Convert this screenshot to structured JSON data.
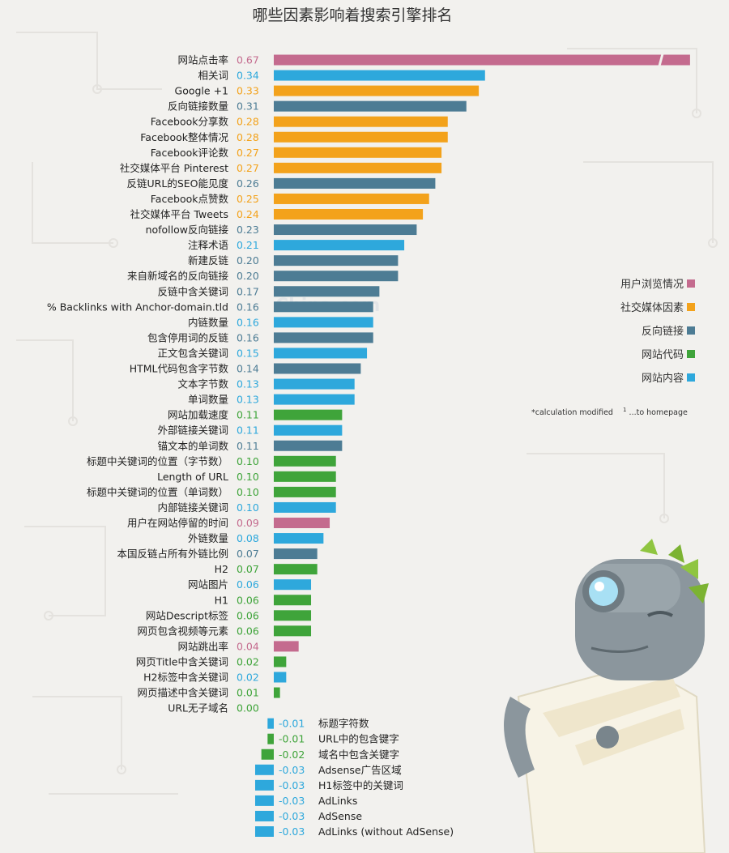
{
  "colors": {
    "user": "#c46b8e",
    "social": "#f3a21b",
    "backlink": "#4d7c94",
    "code": "#3fa43a",
    "content": "#2ea8dc"
  },
  "legend": [
    {
      "label": "用户浏览情况",
      "color": "#c46b8e"
    },
    {
      "label": "社交媒体因素",
      "color": "#f3a21b"
    },
    {
      "label": "反向链接",
      "color": "#4d7c94"
    },
    {
      "label": "网站代码",
      "color": "#3fa43a"
    },
    {
      "label": "网站内容",
      "color": "#2ea8dc"
    }
  ],
  "footnote": {
    "calc": "*calculation modified",
    "sup": "1",
    "home": "...to homepage"
  },
  "watermark": "China.com",
  "mascot_icon": "robot-mascot-icon",
  "chart_data": {
    "type": "bar",
    "title": "哪些因素影响着搜索引擎排名",
    "orientation": "horizontal",
    "legend_position": "right",
    "grid": false,
    "xlim": [
      -0.03,
      0.67
    ],
    "bars": [
      {
        "label": "网站点击率",
        "value": 0.67,
        "value_text": "0.67",
        "cat": "user"
      },
      {
        "label": "相关词",
        "value": 0.34,
        "value_text": "0.34",
        "cat": "content"
      },
      {
        "label": "Google +1",
        "value": 0.33,
        "value_text": "0.33",
        "cat": "social"
      },
      {
        "label": "反向链接数量",
        "value": 0.31,
        "value_text": "0.31",
        "cat": "backlink"
      },
      {
        "label": "Facebook分享数",
        "value": 0.28,
        "value_text": "0.28",
        "cat": "social"
      },
      {
        "label": "Facebook整体情况",
        "value": 0.28,
        "value_text": "0.28",
        "cat": "social"
      },
      {
        "label": "Facebook评论数",
        "value": 0.27,
        "value_text": "0.27",
        "cat": "social"
      },
      {
        "label": "社交媒体平台 Pinterest",
        "value": 0.27,
        "value_text": "0.27",
        "cat": "social"
      },
      {
        "label": "反链URL的SEO能见度",
        "value": 0.26,
        "value_text": "0.26",
        "cat": "backlink"
      },
      {
        "label": "Facebook点赞数",
        "value": 0.25,
        "value_text": "0.25",
        "cat": "social"
      },
      {
        "label": "社交媒体平台 Tweets",
        "value": 0.24,
        "value_text": "0.24",
        "cat": "social"
      },
      {
        "label": "nofollow反向链接",
        "value": 0.23,
        "value_text": "0.23",
        "cat": "backlink"
      },
      {
        "label": "注释术语",
        "value": 0.21,
        "value_text": "0.21",
        "cat": "content"
      },
      {
        "label": "新建反链",
        "value": 0.2,
        "value_text": "0.20",
        "cat": "backlink"
      },
      {
        "label": "来自新域名的反向链接",
        "value": 0.2,
        "value_text": "0.20",
        "cat": "backlink"
      },
      {
        "label": "反链中含关键词",
        "value": 0.17,
        "value_text": "0.17",
        "cat": "backlink"
      },
      {
        "label": "% Backlinks with Anchor-domain.tld",
        "value": 0.16,
        "value_text": "0.16",
        "cat": "backlink"
      },
      {
        "label": "内链数量",
        "value": 0.16,
        "value_text": "0.16",
        "cat": "content"
      },
      {
        "label": "包含停用词的反链",
        "value": 0.16,
        "value_text": "0.16",
        "cat": "backlink"
      },
      {
        "label": "正文包含关键词",
        "value": 0.15,
        "value_text": "0.15",
        "cat": "content"
      },
      {
        "label": "HTML代码包含字节数",
        "value": 0.14,
        "value_text": "0.14",
        "cat": "backlink"
      },
      {
        "label": "文本字节数",
        "value": 0.13,
        "value_text": "0.13",
        "cat": "content"
      },
      {
        "label": "单词数量",
        "value": 0.13,
        "value_text": "0.13",
        "cat": "content"
      },
      {
        "label": "网站加载速度",
        "value": 0.11,
        "value_text": "0.11",
        "cat": "code"
      },
      {
        "label": "外部链接关键词",
        "value": 0.11,
        "value_text": "0.11",
        "cat": "content"
      },
      {
        "label": "锚文本的单词数",
        "value": 0.11,
        "value_text": "0.11",
        "cat": "backlink"
      },
      {
        "label": "标题中关键词的位置（字节数）",
        "value": 0.1,
        "value_text": "0.10",
        "cat": "code"
      },
      {
        "label": "Length of URL",
        "value": 0.1,
        "value_text": "0.10",
        "cat": "code"
      },
      {
        "label": "标题中关键词的位置（单词数）",
        "value": 0.1,
        "value_text": "0.10",
        "cat": "code"
      },
      {
        "label": "内部链接关键词",
        "value": 0.1,
        "value_text": "0.10",
        "cat": "content"
      },
      {
        "label": "用户在网站停留的时间",
        "value": 0.09,
        "value_text": "0.09",
        "cat": "user"
      },
      {
        "label": "外链数量",
        "value": 0.08,
        "value_text": "0.08",
        "cat": "content"
      },
      {
        "label": "本国反链占所有外链比例",
        "value": 0.07,
        "value_text": "0.07",
        "cat": "backlink"
      },
      {
        "label": "H2",
        "value": 0.07,
        "value_text": "0.07",
        "cat": "code"
      },
      {
        "label": "网站图片",
        "value": 0.06,
        "value_text": "0.06",
        "cat": "content"
      },
      {
        "label": "H1",
        "value": 0.06,
        "value_text": "0.06",
        "cat": "code"
      },
      {
        "label": "网站Descript标签",
        "value": 0.06,
        "value_text": "0.06",
        "cat": "code"
      },
      {
        "label": "网页包含视频等元素",
        "value": 0.06,
        "value_text": "0.06",
        "cat": "code"
      },
      {
        "label": "网站跳出率",
        "value": 0.04,
        "value_text": "0.04",
        "cat": "user"
      },
      {
        "label": "网页Title中含关键词",
        "value": 0.02,
        "value_text": "0.02",
        "cat": "code"
      },
      {
        "label": "H2标签中含关键词",
        "value": 0.02,
        "value_text": "0.02",
        "cat": "content"
      },
      {
        "label": "网页描述中含关键词",
        "value": 0.01,
        "value_text": "0.01",
        "cat": "code"
      },
      {
        "label": "URL无子域名",
        "value": 0.0,
        "value_text": "0.00",
        "cat": "code"
      },
      {
        "label": "标题字符数",
        "value": -0.01,
        "value_text": "-0.01",
        "cat": "content"
      },
      {
        "label": "URL中的包含键字",
        "value": -0.01,
        "value_text": "-0.01",
        "cat": "code"
      },
      {
        "label": "域名中包含关键字",
        "value": -0.02,
        "value_text": "-0.02",
        "cat": "code"
      },
      {
        "label": "Adsense广告区域",
        "value": -0.03,
        "value_text": "-0.03",
        "cat": "content"
      },
      {
        "label": "H1标签中的关键词",
        "value": -0.03,
        "value_text": "-0.03",
        "cat": "content"
      },
      {
        "label": "AdLinks",
        "value": -0.03,
        "value_text": "-0.03",
        "cat": "content"
      },
      {
        "label": "AdSense",
        "value": -0.03,
        "value_text": "-0.03",
        "cat": "content"
      },
      {
        "label": "AdLinks (without AdSense)",
        "value": -0.03,
        "value_text": "-0.03",
        "cat": "content"
      }
    ]
  }
}
